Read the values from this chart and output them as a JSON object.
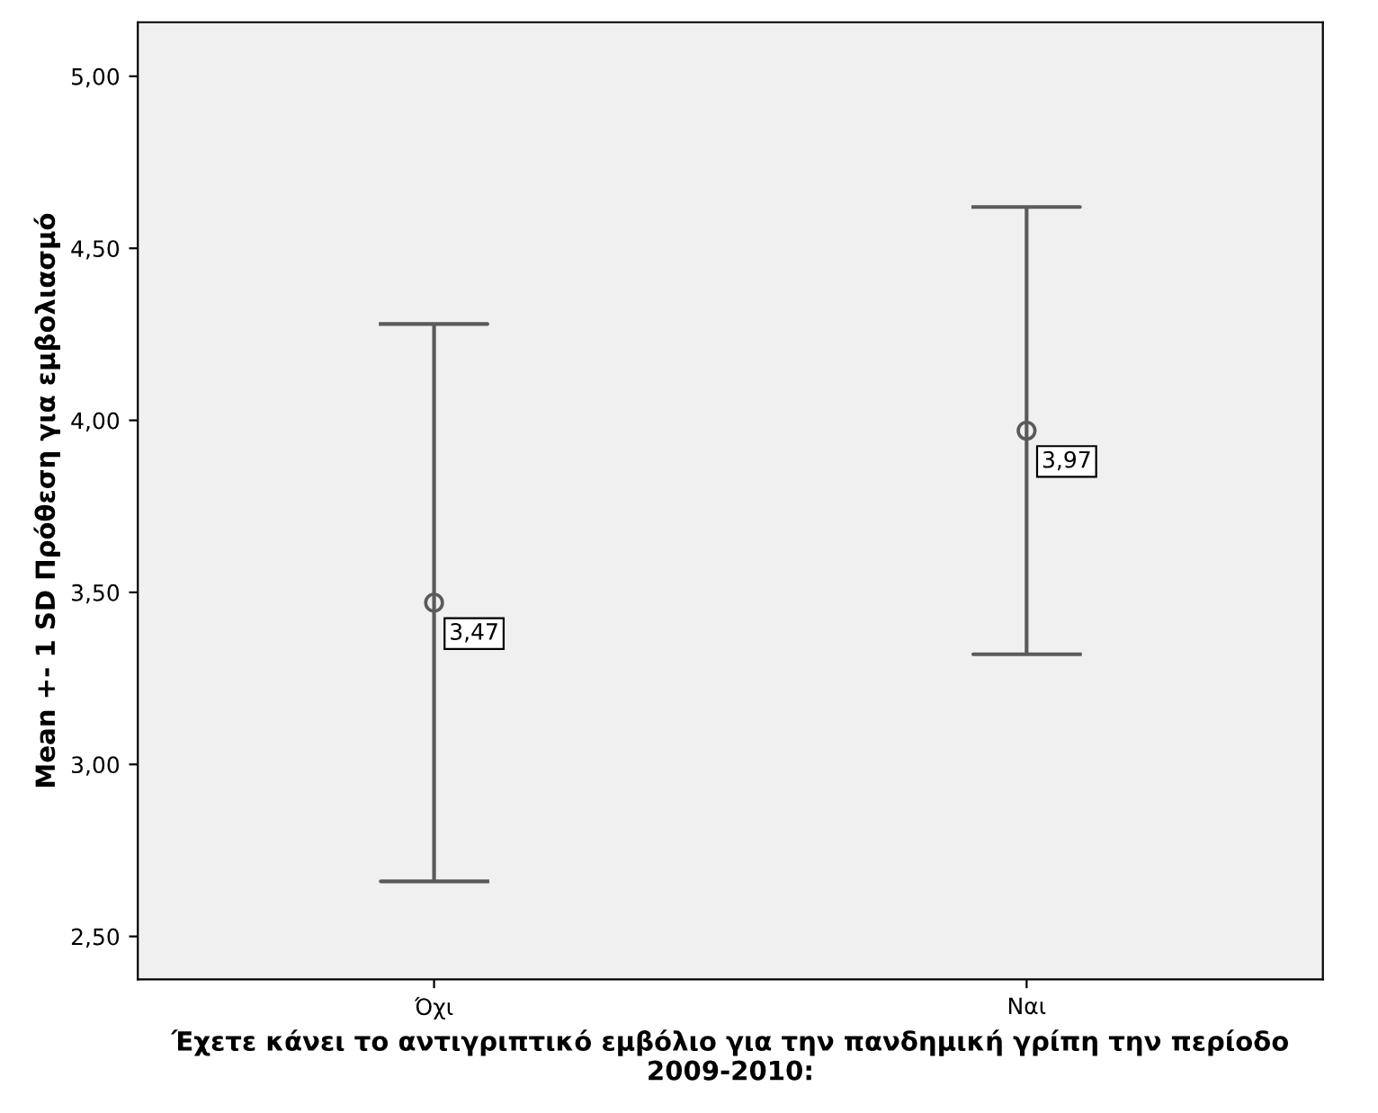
{
  "chart_data": {
    "type": "scatter",
    "xlabel": "Έχετε κάνει το αντιγριπτικό εμβόλιο για την πανδημική γρίπη την περίοδο\n2009-2010:",
    "ylabel": "Mean +- 1 SD Πρόθεση για εμβολιασμό",
    "categories": [
      "Όχι",
      "Ναι"
    ],
    "series": [
      {
        "color": "#5a5a5a",
        "values": [
          3.47,
          3.97
        ],
        "errors": [
          0.81,
          0.65
        ],
        "value_labels": [
          "3,47",
          "3,97"
        ]
      }
    ],
    "marker": "circle",
    "ylim": [
      2.375,
      5.157
    ],
    "yticks": [
      {
        "value": 2.5,
        "label": "2,50"
      },
      {
        "value": 3.0,
        "label": "3,00"
      },
      {
        "value": 3.5,
        "label": "3,50"
      },
      {
        "value": 4.0,
        "label": "4,00"
      },
      {
        "value": 4.5,
        "label": "4,50"
      },
      {
        "value": 5.0,
        "label": "5,00"
      }
    ],
    "grid": false,
    "legend": false
  }
}
